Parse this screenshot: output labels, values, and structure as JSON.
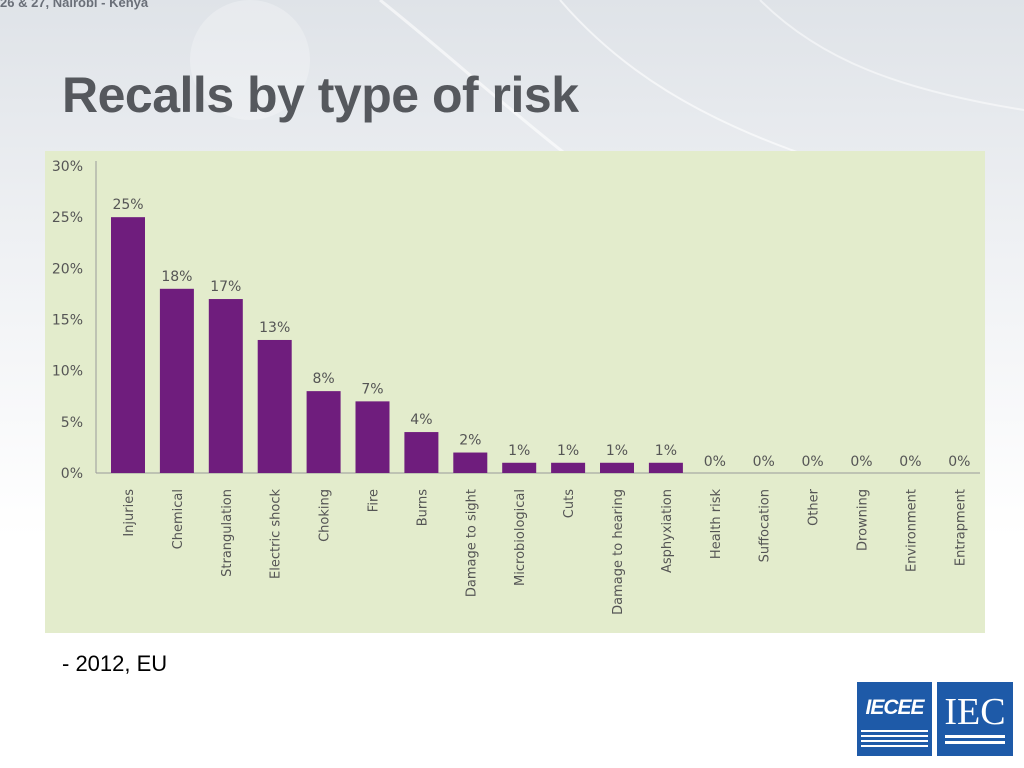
{
  "header": {
    "top_strip": "26 & 27, Nairobi - Kenya",
    "title": "Recalls by type of risk"
  },
  "caption": "- 2012, EU",
  "logos": {
    "iecee_text": "IECEE",
    "iec_text": "IEC"
  },
  "colors": {
    "bar": "#6f1d7d",
    "panel": "#e3eccc",
    "title": "#55585d",
    "logo_blue": "#1e5aa8"
  },
  "chart_data": {
    "type": "bar",
    "categories": [
      "Injuries",
      "Chemical",
      "Strangulation",
      "Electric shock",
      "Choking",
      "Fire",
      "Burns",
      "Damage to sight",
      "Microbiological",
      "Cuts",
      "Damage to hearing",
      "Asphyxiation",
      "Health risk",
      "Suffocation",
      "Other",
      "Drowning",
      "Environment",
      "Entrapment"
    ],
    "values": [
      25,
      18,
      17,
      13,
      8,
      7,
      4,
      2,
      1,
      1,
      1,
      1,
      0,
      0,
      0,
      0,
      0,
      0
    ],
    "data_labels": [
      "25%",
      "18%",
      "17%",
      "13%",
      "8%",
      "7%",
      "4%",
      "2%",
      "1%",
      "1%",
      "1%",
      "1%",
      "0%",
      "0%",
      "0%",
      "0%",
      "0%",
      "0%"
    ],
    "y_ticks": [
      "0%",
      "5%",
      "10%",
      "15%",
      "20%",
      "25%",
      "30%"
    ],
    "ylim": [
      0,
      30
    ],
    "grid": false,
    "title": "",
    "xlabel": "",
    "ylabel": ""
  }
}
